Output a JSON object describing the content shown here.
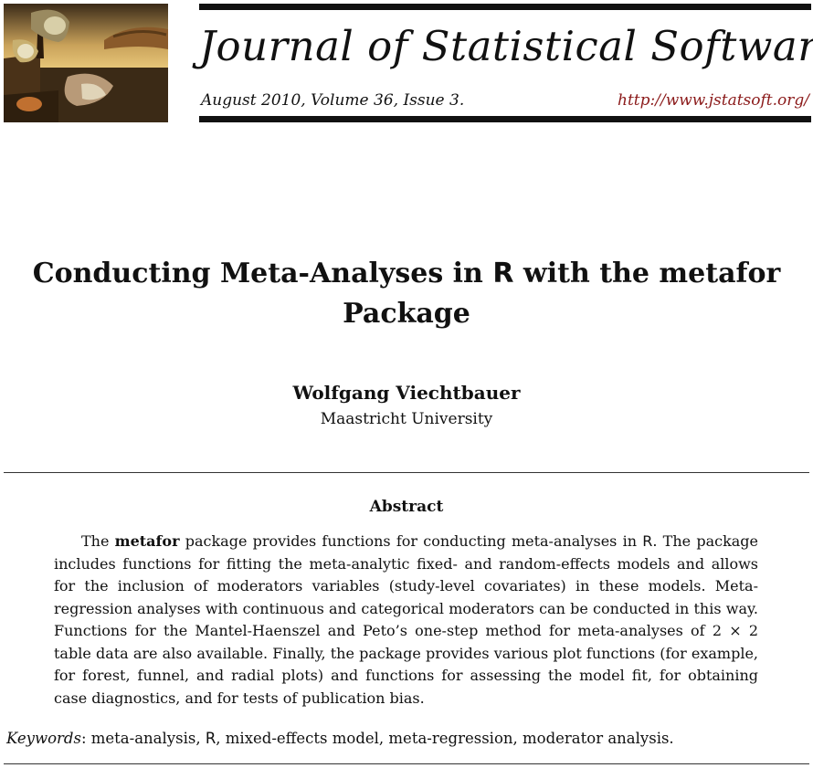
{
  "header": {
    "journal_title": "Journal of Statistical Software",
    "issue_line": "August 2010, Volume 36, Issue 3.",
    "url": "http://www.jstatsoft.org/",
    "logo_icon": "melting-clocks-painting-icon"
  },
  "title": {
    "part1": "Conducting Meta-Analyses in ",
    "r": "R",
    "part2": " with the metafor Package"
  },
  "author": {
    "name": "Wolfgang Viechtbauer",
    "affiliation": "Maastricht University"
  },
  "abstract": {
    "heading": "Abstract",
    "intro": "The ",
    "package": "metafor",
    "body_1": " package provides functions for conducting meta-analyses in ",
    "r": "R",
    "body_2": ". The package includes functions for fitting the meta-analytic fixed- and random-effects models and allows for the inclusion of moderators variables (study-level covariates) in these models. Meta-regression analyses with continuous and categorical moderators can be conducted in this way.  Functions for the Mantel-Haenszel and Peto’s one-step method for meta-analyses of 2 × 2 table data are also available. Finally, the package provides various plot functions (for example, for forest, funnel, and radial plots) and functions for assessing the model fit, for obtaining case diagnostics, and for tests of publication bias."
  },
  "keywords": {
    "label": "Keywords",
    "part1": ": meta-analysis, ",
    "r": "R",
    "part2": ", mixed-effects model, meta-regression, moderator analysis."
  }
}
